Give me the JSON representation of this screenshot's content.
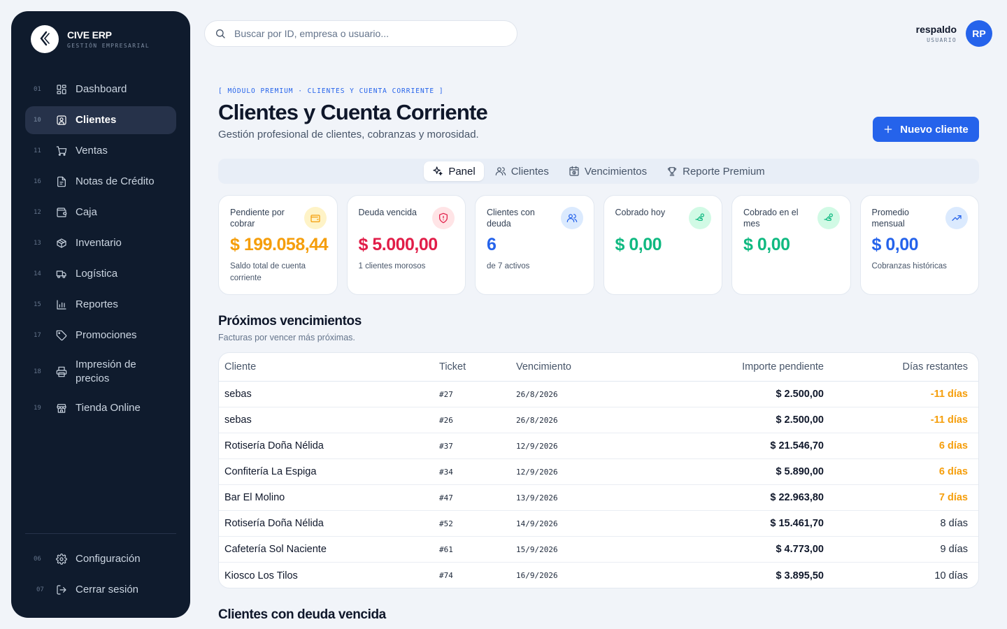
{
  "brand": {
    "name": "CIVE ERP",
    "subtitle": "GESTIÓN EMPRESARIAL",
    "logo_text": "CIVE"
  },
  "sidebar": {
    "items": [
      {
        "num": "01",
        "label": "Dashboard",
        "icon": "dashboard-icon"
      },
      {
        "num": "10",
        "label": "Clientes",
        "icon": "user-square-icon",
        "active": true
      },
      {
        "num": "11",
        "label": "Ventas",
        "icon": "cart-icon"
      },
      {
        "num": "16",
        "label": "Notas de Crédito",
        "icon": "document-icon"
      },
      {
        "num": "12",
        "label": "Caja",
        "icon": "wallet-icon"
      },
      {
        "num": "13",
        "label": "Inventario",
        "icon": "package-icon"
      },
      {
        "num": "14",
        "label": "Logística",
        "icon": "truck-icon"
      },
      {
        "num": "15",
        "label": "Reportes",
        "icon": "bar-chart-icon"
      },
      {
        "num": "17",
        "label": "Promociones",
        "icon": "tag-icon"
      },
      {
        "num": "18",
        "label": "Impresión de precios",
        "icon": "printer-icon"
      },
      {
        "num": "19",
        "label": "Tienda Online",
        "icon": "store-icon"
      }
    ],
    "bottom": [
      {
        "num": "06",
        "label": "Configuración",
        "icon": "gear-icon"
      },
      {
        "num": "07",
        "label": "Cerrar sesión",
        "icon": "logout-icon"
      }
    ]
  },
  "search": {
    "placeholder": "Buscar por ID, empresa o usuario..."
  },
  "user": {
    "name": "respaldo",
    "role": "USUARIO",
    "initials": "RP"
  },
  "header": {
    "eyebrow": "[ MÓDULO PREMIUM · CLIENTES Y CUENTA CORRIENTE ]",
    "title": "Clientes y Cuenta Corriente",
    "subtitle": "Gestión profesional de clientes, cobranzas y morosidad.",
    "new_button": "Nuevo cliente"
  },
  "tabs": [
    {
      "label": "Panel",
      "icon": "sparkle-icon",
      "active": true
    },
    {
      "label": "Clientes",
      "icon": "users-icon"
    },
    {
      "label": "Vencimientos",
      "icon": "calendar-clock-icon"
    },
    {
      "label": "Reporte Premium",
      "icon": "trophy-icon"
    }
  ],
  "kpis": [
    {
      "label": "Pendiente por cobrar",
      "value": "$ 199.058,44",
      "note": "Saldo total de cuenta corriente",
      "color": "#f59e0b",
      "icon": "wallet-icon"
    },
    {
      "label": "Deuda vencida",
      "value": "$ 5.000,00",
      "note": "1 clientes morosos",
      "color": "#e11d48",
      "icon": "shield-alert-icon"
    },
    {
      "label": "Clientes con deuda",
      "value": "6",
      "note": "de 7 activos",
      "color": "#2563eb",
      "icon": "users-icon"
    },
    {
      "label": "Cobrado hoy",
      "value": "$ 0,00",
      "note": "",
      "color": "#10b981",
      "icon": "hand-coins-icon"
    },
    {
      "label": "Cobrado en el mes",
      "value": "$ 0,00",
      "note": "",
      "color": "#10b981",
      "icon": "hand-coins-icon"
    },
    {
      "label": "Promedio mensual",
      "value": "$ 0,00",
      "note": "Cobranzas históricas",
      "color": "#2563eb",
      "icon": "trending-up-icon"
    }
  ],
  "upcoming": {
    "title": "Próximos vencimientos",
    "subtitle": "Facturas por vencer más próximas.",
    "columns": [
      "Cliente",
      "Ticket",
      "Vencimiento",
      "Importe pendiente",
      "Días restantes"
    ],
    "rows": [
      {
        "cliente": "sebas",
        "ticket": "#27",
        "vencimiento": "26/8/2026",
        "importe": "$ 2.500,00",
        "dias": "-11 días",
        "warn": true
      },
      {
        "cliente": "sebas",
        "ticket": "#26",
        "vencimiento": "26/8/2026",
        "importe": "$ 2.500,00",
        "dias": "-11 días",
        "warn": true
      },
      {
        "cliente": "Rotisería Doña Nélida",
        "ticket": "#37",
        "vencimiento": "12/9/2026",
        "importe": "$ 21.546,70",
        "dias": "6 días",
        "warn": true
      },
      {
        "cliente": "Confitería La Espiga",
        "ticket": "#34",
        "vencimiento": "12/9/2026",
        "importe": "$ 5.890,00",
        "dias": "6 días",
        "warn": true
      },
      {
        "cliente": "Bar El Molino",
        "ticket": "#47",
        "vencimiento": "13/9/2026",
        "importe": "$ 22.963,80",
        "dias": "7 días",
        "warn": true
      },
      {
        "cliente": "Rotisería Doña Nélida",
        "ticket": "#52",
        "vencimiento": "14/9/2026",
        "importe": "$ 15.461,70",
        "dias": "8 días",
        "warn": false
      },
      {
        "cliente": "Cafetería Sol Naciente",
        "ticket": "#61",
        "vencimiento": "15/9/2026",
        "importe": "$ 4.773,00",
        "dias": "9 días",
        "warn": false
      },
      {
        "cliente": "Kiosco Los Tilos",
        "ticket": "#74",
        "vencimiento": "16/9/2026",
        "importe": "$ 3.895,50",
        "dias": "10 días",
        "warn": false
      }
    ]
  },
  "overdue": {
    "title": "Clientes con deuda vencida"
  }
}
